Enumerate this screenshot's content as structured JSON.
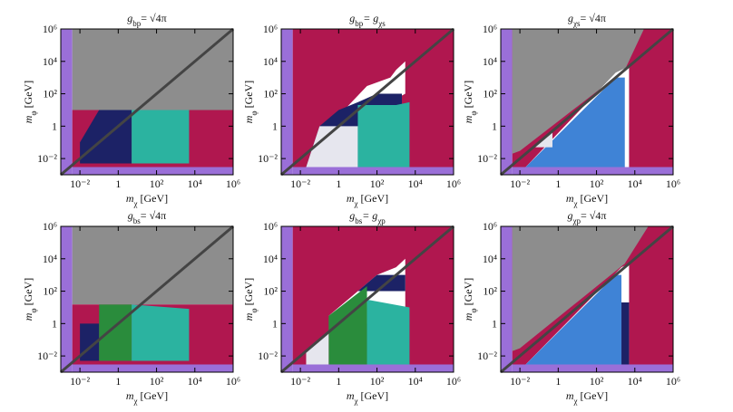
{
  "chart_data": [
    {
      "type": "region",
      "title": [
        "g",
        "bp",
        "= √4π"
      ],
      "xlabel": [
        "m",
        "χ",
        " [GeV]"
      ],
      "ylabel": [
        "m",
        "φ",
        " [GeV]"
      ],
      "xscale": "log",
      "yscale": "log",
      "xlim": [
        0.001,
        1000000
      ],
      "ylim": [
        0.001,
        1000000
      ],
      "xticks": [
        {
          "value": 0.01,
          "label": "10⁻²"
        },
        1,
        {
          "value": 100,
          "label": "10²"
        },
        {
          "value": 10000,
          "label": "10⁴"
        },
        {
          "value": 1000000,
          "label": "10⁶"
        }
      ],
      "yticks": [
        {
          "value": 0.01,
          "label": "10⁻²"
        },
        1,
        {
          "value": 100,
          "label": "10²"
        },
        {
          "value": 10000,
          "label": "10⁴"
        },
        {
          "value": 1000000,
          "label": "10⁶"
        }
      ],
      "regions": [
        {
          "color": "#9a6fd8",
          "x": [
            0.001,
            0.004,
            0.004,
            0.001
          ],
          "values": [
            0.001,
            0.001,
            1000000,
            1000000
          ]
        },
        {
          "color": "#9a6fd8",
          "x": [
            0.004,
            1000000,
            1000000,
            0.004
          ],
          "values": [
            0.001,
            0.001,
            0.003,
            0.003
          ]
        },
        {
          "color": "#8d8d8d",
          "x": [
            0.004,
            1000000,
            1000000,
            0.004
          ],
          "values": [
            10,
            10,
            1000000,
            1000000
          ]
        },
        {
          "color": "#b0174f",
          "x": [
            0.004,
            1000000,
            1000000,
            0.004
          ],
          "values": [
            0.003,
            0.003,
            10,
            10
          ]
        },
        {
          "color": "#1c2266",
          "x": [
            0.01,
            5,
            5,
            0.1,
            0.01
          ],
          "values": [
            0.005,
            0.005,
            10,
            10,
            0.1
          ]
        },
        {
          "color": "#2bb3a0",
          "x": [
            5,
            5000,
            5000,
            5
          ],
          "values": [
            0.005,
            0.005,
            10,
            10
          ]
        }
      ],
      "series": [
        {
          "color": "#444444",
          "x": [
            0.001,
            1000000
          ],
          "values": [
            0.001,
            1000000
          ]
        }
      ]
    },
    {
      "type": "region",
      "title": [
        "g",
        "bp",
        "= g",
        "χs"
      ],
      "xlabel": [
        "m",
        "χ",
        " [GeV]"
      ],
      "ylabel": [
        "m",
        "φ",
        " [GeV]"
      ],
      "xscale": "log",
      "yscale": "log",
      "xlim": [
        0.001,
        1000000
      ],
      "ylim": [
        0.001,
        1000000
      ],
      "xticks": [
        {
          "value": 0.01,
          "label": "10⁻²"
        },
        1,
        {
          "value": 100,
          "label": "10²"
        },
        {
          "value": 10000,
          "label": "10⁴"
        },
        {
          "value": 1000000,
          "label": "10⁶"
        }
      ],
      "yticks": [
        {
          "value": 0.01,
          "label": "10⁻²"
        },
        1,
        {
          "value": 100,
          "label": "10²"
        },
        {
          "value": 10000,
          "label": "10⁴"
        },
        {
          "value": 1000000,
          "label": "10⁶"
        }
      ],
      "regions": [
        {
          "color": "#9a6fd8",
          "x": [
            0.001,
            0.004,
            0.004,
            0.001
          ],
          "values": [
            0.001,
            0.001,
            1000000,
            1000000
          ]
        },
        {
          "color": "#9a6fd8",
          "x": [
            0.004,
            1000000,
            1000000,
            0.004
          ],
          "values": [
            0.001,
            0.001,
            0.003,
            0.003
          ]
        },
        {
          "color": "#b0174f",
          "x": [
            0.004,
            1000000,
            1000000,
            0.004
          ],
          "values": [
            0.003,
            0.003,
            1000000,
            1000000
          ]
        },
        {
          "color": "#ffffff",
          "x": [
            0.3,
            30,
            500,
            1000,
            3000,
            3000,
            1000,
            100,
            10,
            1
          ],
          "values": [
            1,
            300,
            1000,
            3000,
            10000,
            100,
            50,
            50,
            20,
            5
          ]
        },
        {
          "color": "#1c2266",
          "x": [
            0.02,
            0.1,
            1,
            10,
            100,
            2000,
            2000,
            0.02
          ],
          "values": [
            0.003,
            1,
            10,
            30,
            100,
            100,
            0.003,
            0.003
          ]
        },
        {
          "color": "#e6e6ee",
          "x": [
            0.02,
            10,
            10,
            0.1
          ],
          "values": [
            0.003,
            0.003,
            1,
            1
          ]
        },
        {
          "color": "#2bb3a0",
          "x": [
            10,
            5000,
            5000,
            1000,
            10
          ],
          "values": [
            0.003,
            0.003,
            30,
            20,
            20
          ]
        }
      ],
      "series": [
        {
          "color": "#444444",
          "x": [
            0.001,
            1000000
          ],
          "values": [
            0.001,
            1000000
          ]
        }
      ]
    },
    {
      "type": "region",
      "title": [
        "g",
        "χs",
        "= √4π"
      ],
      "xlabel": [
        "m",
        "χ",
        " [GeV]"
      ],
      "ylabel": [
        "m",
        "φ",
        " [GeV]"
      ],
      "xscale": "log",
      "yscale": "log",
      "xlim": [
        0.001,
        1000000
      ],
      "ylim": [
        0.001,
        1000000
      ],
      "xticks": [
        {
          "value": 0.01,
          "label": "10⁻²"
        },
        1,
        {
          "value": 100,
          "label": "10²"
        },
        {
          "value": 10000,
          "label": "10⁴"
        },
        {
          "value": 1000000,
          "label": "10⁶"
        }
      ],
      "yticks": [
        {
          "value": 0.01,
          "label": "10⁻²"
        },
        1,
        {
          "value": 100,
          "label": "10²"
        },
        {
          "value": 10000,
          "label": "10⁴"
        },
        {
          "value": 1000000,
          "label": "10⁶"
        }
      ],
      "regions": [
        {
          "color": "#9a6fd8",
          "x": [
            0.001,
            0.004,
            0.004,
            0.001
          ],
          "values": [
            0.001,
            0.001,
            1000000,
            1000000
          ]
        },
        {
          "color": "#9a6fd8",
          "x": [
            0.004,
            1000000,
            1000000,
            0.004
          ],
          "values": [
            0.001,
            0.001,
            0.003,
            0.003
          ]
        },
        {
          "color": "#b0174f",
          "x": [
            0.004,
            1000000,
            1000000,
            0.004
          ],
          "values": [
            0.003,
            0.003,
            1000000,
            1000000
          ]
        },
        {
          "color": "#8d8d8d",
          "x": [
            0.004,
            0.004,
            30000,
            3000,
            0.01
          ],
          "values": [
            0.02,
            1000000,
            1000000,
            3000,
            0.03
          ]
        },
        {
          "color": "#ffffff",
          "x": [
            0.02,
            1000,
            5000,
            5000
          ],
          "values": [
            0.003,
            2000,
            5000,
            0.003
          ]
        },
        {
          "color": "#3f83d6",
          "x": [
            0.02,
            1000,
            3000,
            3000
          ],
          "values": [
            0.003,
            1000,
            1000,
            0.003
          ]
        },
        {
          "color": "#e6e6ee",
          "x": [
            0.05,
            0.5,
            0.5
          ],
          "values": [
            0.05,
            0.5,
            0.05
          ]
        }
      ],
      "series": [
        {
          "color": "#444444",
          "x": [
            0.001,
            1000000
          ],
          "values": [
            0.001,
            1000000
          ]
        }
      ]
    },
    {
      "type": "region",
      "title": [
        "g",
        "bs",
        "= √4π"
      ],
      "xlabel": [
        "m",
        "χ",
        " [GeV]"
      ],
      "ylabel": [
        "m",
        "φ",
        " [GeV]"
      ],
      "xscale": "log",
      "yscale": "log",
      "xlim": [
        0.001,
        1000000
      ],
      "ylim": [
        0.001,
        1000000
      ],
      "xticks": [
        {
          "value": 0.01,
          "label": "10⁻²"
        },
        1,
        {
          "value": 100,
          "label": "10²"
        },
        {
          "value": 10000,
          "label": "10⁴"
        },
        {
          "value": 1000000,
          "label": "10⁶"
        }
      ],
      "yticks": [
        {
          "value": 0.01,
          "label": "10⁻²"
        },
        1,
        {
          "value": 100,
          "label": "10²"
        },
        {
          "value": 10000,
          "label": "10⁴"
        },
        {
          "value": 1000000,
          "label": "10⁶"
        }
      ],
      "regions": [
        {
          "color": "#9a6fd8",
          "x": [
            0.001,
            0.004,
            0.004,
            0.001
          ],
          "values": [
            0.001,
            0.001,
            1000000,
            1000000
          ]
        },
        {
          "color": "#9a6fd8",
          "x": [
            0.004,
            1000000,
            1000000,
            0.004
          ],
          "values": [
            0.001,
            0.001,
            0.003,
            0.003
          ]
        },
        {
          "color": "#8d8d8d",
          "x": [
            0.004,
            1000000,
            1000000,
            0.004
          ],
          "values": [
            15,
            15,
            1000000,
            1000000
          ]
        },
        {
          "color": "#b0174f",
          "x": [
            0.004,
            1000000,
            1000000,
            0.004
          ],
          "values": [
            0.003,
            0.003,
            15,
            15
          ]
        },
        {
          "color": "#1c2266",
          "x": [
            0.01,
            0.1,
            0.1,
            0.01
          ],
          "values": [
            0.005,
            0.005,
            1,
            1
          ]
        },
        {
          "color": "#2a8c3c",
          "x": [
            0.1,
            5,
            5,
            0.1
          ],
          "values": [
            0.005,
            0.005,
            15,
            15
          ]
        },
        {
          "color": "#2bb3a0",
          "x": [
            5,
            5000,
            5000,
            5
          ],
          "values": [
            0.005,
            0.005,
            8,
            15
          ]
        }
      ],
      "series": [
        {
          "color": "#444444",
          "x": [
            0.001,
            1000000
          ],
          "values": [
            0.001,
            1000000
          ]
        }
      ]
    },
    {
      "type": "region",
      "title": [
        "g",
        "bs",
        "= g",
        "χp"
      ],
      "xlabel": [
        "m",
        "χ",
        " [GeV]"
      ],
      "ylabel": [
        "m",
        "φ",
        " [GeV]"
      ],
      "xscale": "log",
      "yscale": "log",
      "xlim": [
        0.001,
        1000000
      ],
      "ylim": [
        0.001,
        1000000
      ],
      "xticks": [
        {
          "value": 0.01,
          "label": "10⁻²"
        },
        1,
        {
          "value": 100,
          "label": "10²"
        },
        {
          "value": 10000,
          "label": "10⁴"
        },
        {
          "value": 1000000,
          "label": "10⁶"
        }
      ],
      "yticks": [
        {
          "value": 0.01,
          "label": "10⁻²"
        },
        1,
        {
          "value": 100,
          "label": "10²"
        },
        {
          "value": 10000,
          "label": "10⁴"
        },
        {
          "value": 1000000,
          "label": "10⁶"
        }
      ],
      "regions": [
        {
          "color": "#9a6fd8",
          "x": [
            0.001,
            0.004,
            0.004,
            0.001
          ],
          "values": [
            0.001,
            0.001,
            1000000,
            1000000
          ]
        },
        {
          "color": "#9a6fd8",
          "x": [
            0.004,
            1000000,
            1000000,
            0.004
          ],
          "values": [
            0.001,
            0.001,
            0.003,
            0.003
          ]
        },
        {
          "color": "#b0174f",
          "x": [
            0.004,
            1000000,
            1000000,
            0.004
          ],
          "values": [
            0.003,
            0.003,
            1000000,
            1000000
          ]
        },
        {
          "color": "#ffffff",
          "x": [
            0.3,
            100,
            1000,
            3000,
            3000,
            1000,
            10
          ],
          "values": [
            3,
            1000,
            3000,
            10000,
            10,
            10,
            0.5
          ]
        },
        {
          "color": "#1c2266",
          "x": [
            10,
            100,
            1000,
            3000,
            3000,
            10
          ],
          "values": [
            100,
            1000,
            1000,
            1000,
            100,
            100
          ]
        },
        {
          "color": "#2a8c3c",
          "x": [
            0.3,
            30,
            30,
            0.3
          ],
          "values": [
            0.003,
            0.003,
            200,
            3
          ]
        },
        {
          "color": "#e6e6ee",
          "x": [
            0.02,
            0.3,
            0.3,
            0.02
          ],
          "values": [
            0.003,
            0.003,
            0.3,
            0.02
          ]
        },
        {
          "color": "#2bb3a0",
          "x": [
            30,
            5000,
            5000,
            30
          ],
          "values": [
            0.003,
            0.003,
            10,
            30
          ]
        }
      ],
      "series": [
        {
          "color": "#444444",
          "x": [
            0.001,
            1000000
          ],
          "values": [
            0.001,
            1000000
          ]
        }
      ]
    },
    {
      "type": "region",
      "title": [
        "g",
        "χp",
        "= √4π"
      ],
      "xlabel": [
        "m",
        "χ",
        " [GeV]"
      ],
      "ylabel": [
        "m",
        "φ",
        " [GeV]"
      ],
      "xscale": "log",
      "yscale": "log",
      "xlim": [
        0.001,
        1000000
      ],
      "ylim": [
        0.001,
        1000000
      ],
      "xticks": [
        {
          "value": 0.01,
          "label": "10⁻²"
        },
        1,
        {
          "value": 100,
          "label": "10²"
        },
        {
          "value": 10000,
          "label": "10⁴"
        },
        {
          "value": 1000000,
          "label": "10⁶"
        }
      ],
      "yticks": [
        {
          "value": 0.01,
          "label": "10⁻²"
        },
        1,
        {
          "value": 100,
          "label": "10²"
        },
        {
          "value": 10000,
          "label": "10⁴"
        },
        {
          "value": 1000000,
          "label": "10⁶"
        }
      ],
      "regions": [
        {
          "color": "#9a6fd8",
          "x": [
            0.001,
            0.004,
            0.004,
            0.001
          ],
          "values": [
            0.001,
            0.001,
            1000000,
            1000000
          ]
        },
        {
          "color": "#9a6fd8",
          "x": [
            0.004,
            1000000,
            1000000,
            0.004
          ],
          "values": [
            0.001,
            0.001,
            0.003,
            0.003
          ]
        },
        {
          "color": "#b0174f",
          "x": [
            0.004,
            1000000,
            1000000,
            0.004
          ],
          "values": [
            0.003,
            0.003,
            1000000,
            1000000
          ]
        },
        {
          "color": "#8d8d8d",
          "x": [
            0.004,
            0.004,
            50000,
            3000,
            0.01
          ],
          "values": [
            0.02,
            1000000,
            1000000,
            5000,
            0.03
          ]
        },
        {
          "color": "#ffffff",
          "x": [
            0.02,
            2000,
            5000,
            5000
          ],
          "values": [
            0.003,
            3000,
            5000,
            0.003
          ]
        },
        {
          "color": "#3f83d6",
          "x": [
            0.02,
            1000,
            2000,
            2000
          ],
          "values": [
            0.003,
            1000,
            1000,
            0.003
          ]
        },
        {
          "color": "#1c2266",
          "x": [
            2000,
            5000,
            5000,
            2000
          ],
          "values": [
            0.003,
            0.003,
            20,
            20
          ]
        }
      ],
      "series": [
        {
          "color": "#444444",
          "x": [
            0.001,
            1000000
          ],
          "values": [
            0.001,
            1000000
          ]
        }
      ]
    }
  ]
}
